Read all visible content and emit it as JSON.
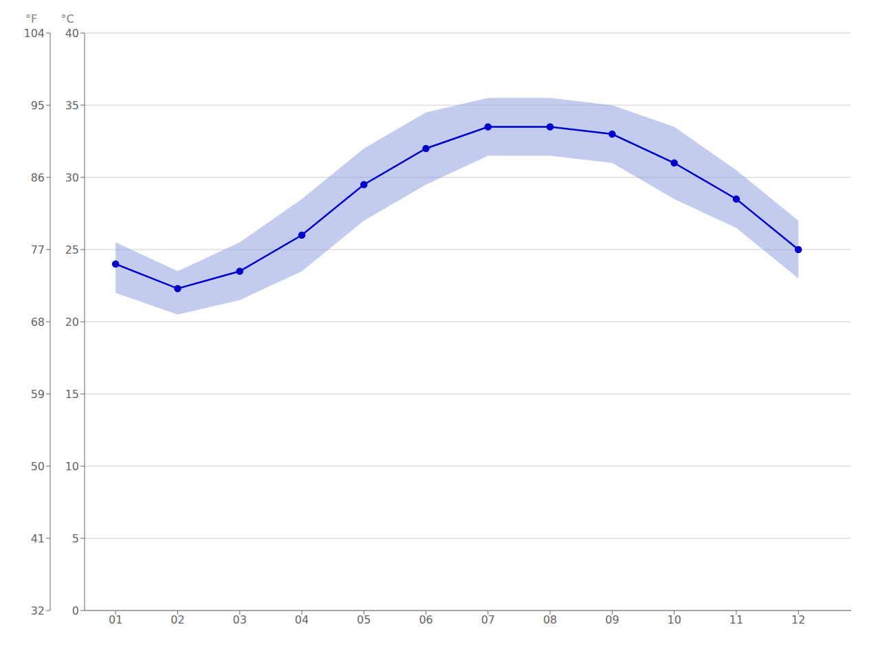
{
  "chart_data": {
    "type": "line",
    "x": [
      1,
      2,
      3,
      4,
      5,
      6,
      7,
      8,
      9,
      10,
      11,
      12
    ],
    "values": [
      24.0,
      22.3,
      23.5,
      26.0,
      29.5,
      32.0,
      33.5,
      33.5,
      33.0,
      31.0,
      28.5,
      25.0
    ],
    "color": "#0000cc",
    "marker": "circle",
    "band": {
      "low": [
        22.0,
        20.5,
        21.5,
        23.5,
        27.0,
        29.5,
        31.5,
        31.5,
        31.0,
        28.5,
        26.5,
        23.0
      ],
      "high": [
        25.5,
        23.5,
        25.5,
        28.5,
        32.0,
        34.5,
        35.5,
        35.5,
        35.0,
        33.5,
        30.5,
        27.0
      ],
      "color": "#8899dd"
    },
    "xlim": [
      0.5,
      12.85
    ],
    "xticks": [
      {
        "value": 1,
        "label": "01"
      },
      {
        "value": 2,
        "label": "02"
      },
      {
        "value": 3,
        "label": "03"
      },
      {
        "value": 4,
        "label": "04"
      },
      {
        "value": 5,
        "label": "05"
      },
      {
        "value": 6,
        "label": "06"
      },
      {
        "value": 7,
        "label": "07"
      },
      {
        "value": 8,
        "label": "08"
      },
      {
        "value": 9,
        "label": "09"
      },
      {
        "value": 10,
        "label": "10"
      },
      {
        "value": 11,
        "label": "11"
      },
      {
        "value": 12,
        "label": "12"
      }
    ],
    "ylabel": "°C",
    "ylim": [
      0,
      40
    ],
    "yticks": [
      0,
      5,
      10,
      15,
      20,
      25,
      30,
      35,
      40
    ],
    "y2label": "°F",
    "y2lim": [
      32,
      104
    ],
    "y2ticks": [
      32,
      41,
      50,
      59,
      68,
      77,
      86,
      95,
      104
    ],
    "grid": true
  }
}
